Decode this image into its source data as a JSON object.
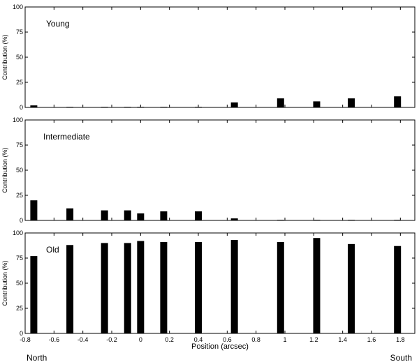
{
  "chart_data": {
    "type": "bar",
    "xlabel": "Position (arcsec)",
    "ylabel": "Contribution (%)",
    "xlim": [
      -0.8,
      1.9
    ],
    "ylim": [
      0,
      100
    ],
    "xticks": [
      "-0.8",
      "-0.6",
      "-0.4",
      "-0.2",
      "0",
      "0.2",
      "0.4",
      "0.6",
      "0.8",
      "1",
      "1.2",
      "1.4",
      "1.6",
      "1.8"
    ],
    "yticks": [
      "0",
      "25",
      "50",
      "75",
      "100"
    ],
    "edge_labels": {
      "left": "North",
      "right": "South"
    },
    "x": [
      -0.74,
      -0.49,
      -0.25,
      -0.09,
      0.0,
      0.16,
      0.4,
      0.65,
      0.97,
      1.22,
      1.46,
      1.78
    ],
    "panels": [
      {
        "title": "Young",
        "values": [
          2,
          0,
          0,
          0,
          0,
          0,
          0,
          5,
          9,
          6,
          9,
          11
        ]
      },
      {
        "title": "Intermediate",
        "values": [
          20,
          12,
          10,
          10,
          7,
          9,
          9,
          2,
          0,
          0,
          0,
          0
        ]
      },
      {
        "title": "Old",
        "values": [
          77,
          88,
          90,
          90,
          92,
          91,
          91,
          93,
          91,
          95,
          89,
          87
        ]
      }
    ],
    "grid": false
  }
}
